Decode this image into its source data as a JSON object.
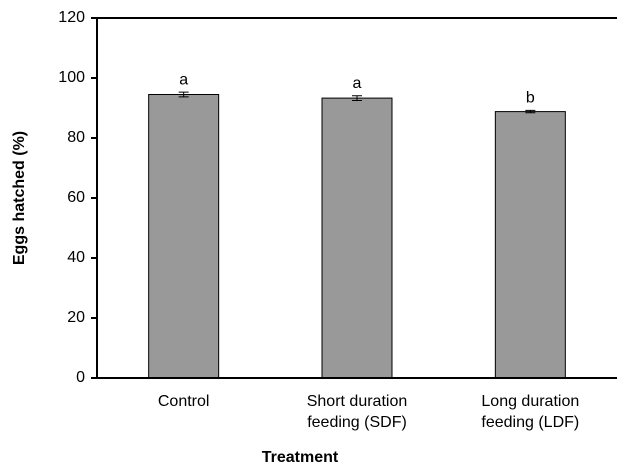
{
  "chart_data": {
    "type": "bar",
    "x_label": "Treatment",
    "y_label": "Eggs hatched (%)",
    "categories": [
      [
        "Control"
      ],
      [
        "Short duration",
        "feeding (SDF)"
      ],
      [
        "Long duration",
        "feeding (LDF)"
      ]
    ],
    "values": [
      94.5,
      93.3,
      88.8
    ],
    "errors": [
      0.8,
      0.8,
      0.4
    ],
    "letters": [
      "a",
      "a",
      "b"
    ],
    "color": "#999999",
    "ylim": [
      0,
      120
    ],
    "yticks": [
      0,
      20,
      40,
      60,
      80,
      100,
      120
    ]
  }
}
